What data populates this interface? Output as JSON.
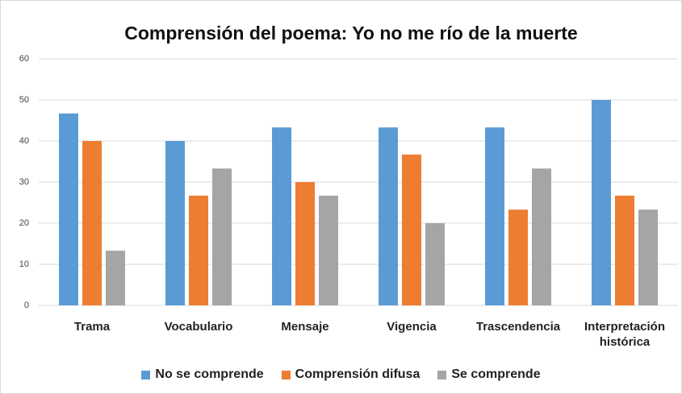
{
  "chart_data": {
    "type": "bar",
    "title": "Comprensión del poema: Yo no me río de la muerte",
    "categories": [
      "Trama",
      "Vocabulario",
      "Mensaje",
      "Vigencia",
      "Trascendencia",
      "Interpretación histórica"
    ],
    "series": [
      {
        "name": "No se comprende",
        "color": "#5b9bd5",
        "values": [
          46.7,
          40,
          43.3,
          43.3,
          43.3,
          50
        ]
      },
      {
        "name": "Comprensión difusa",
        "color": "#ed7d31",
        "values": [
          40,
          26.7,
          30,
          36.7,
          23.3,
          26.7
        ]
      },
      {
        "name": "Se comprende",
        "color": "#a5a5a5",
        "values": [
          13.3,
          33.3,
          26.7,
          20,
          33.3,
          23.3
        ]
      }
    ],
    "ylim": [
      0,
      60
    ],
    "yticks": [
      0,
      10,
      20,
      30,
      40,
      50,
      60
    ],
    "grid": true,
    "legend": "bottom"
  }
}
